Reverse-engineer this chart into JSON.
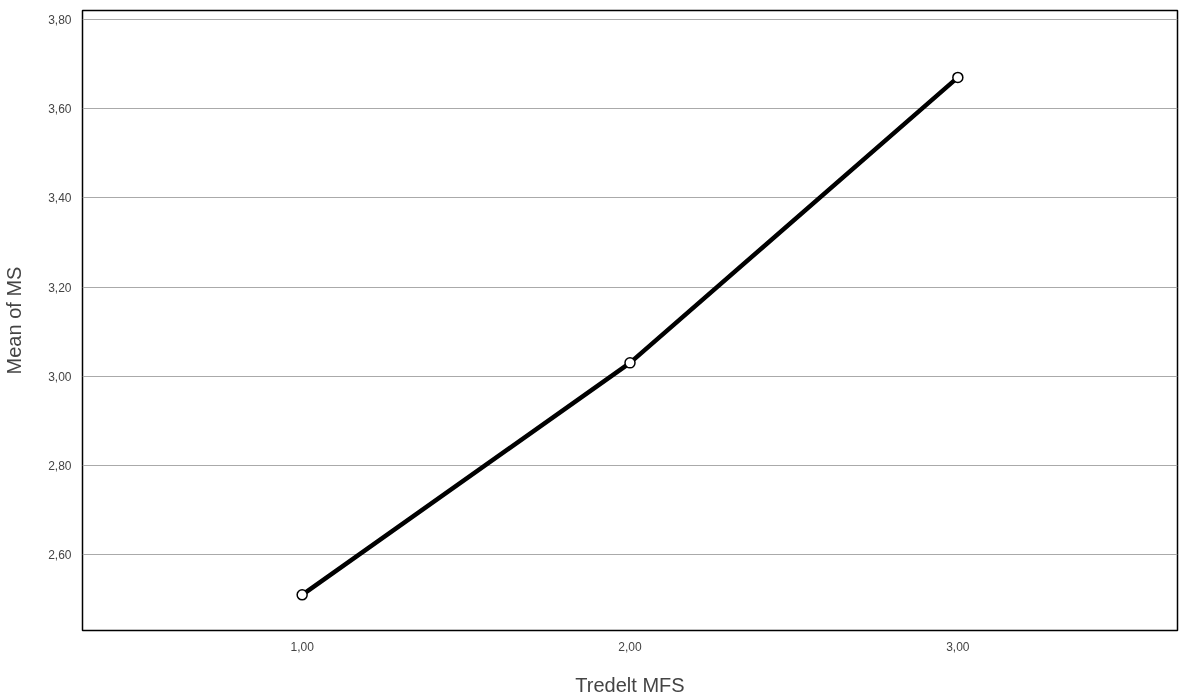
{
  "chart_data": {
    "type": "line",
    "xlabel": "Tredelt MFS",
    "ylabel": "Mean of MS",
    "x": [
      1,
      2,
      3
    ],
    "series": [
      {
        "color": "#000000",
        "values": [
          2.51,
          3.03,
          3.67
        ]
      }
    ],
    "xlim": [
      0.33,
      3.67
    ],
    "xticks": [
      {
        "value": 1,
        "label": "1,00"
      },
      {
        "value": 2,
        "label": "2,00"
      },
      {
        "value": 3,
        "label": "3,00"
      }
    ],
    "ylim": [
      2.43,
      3.82
    ],
    "yticks": [
      {
        "value": 2.6,
        "label": "2,60"
      },
      {
        "value": 2.8,
        "label": "2,80"
      },
      {
        "value": 3.0,
        "label": "3,00"
      },
      {
        "value": 3.2,
        "label": "3,20"
      },
      {
        "value": 3.4,
        "label": "3,40"
      },
      {
        "value": 3.6,
        "label": "3,60"
      },
      {
        "value": 3.8,
        "label": "3,80"
      }
    ],
    "grid": "y",
    "marker": "circle",
    "line_style": "solid"
  }
}
